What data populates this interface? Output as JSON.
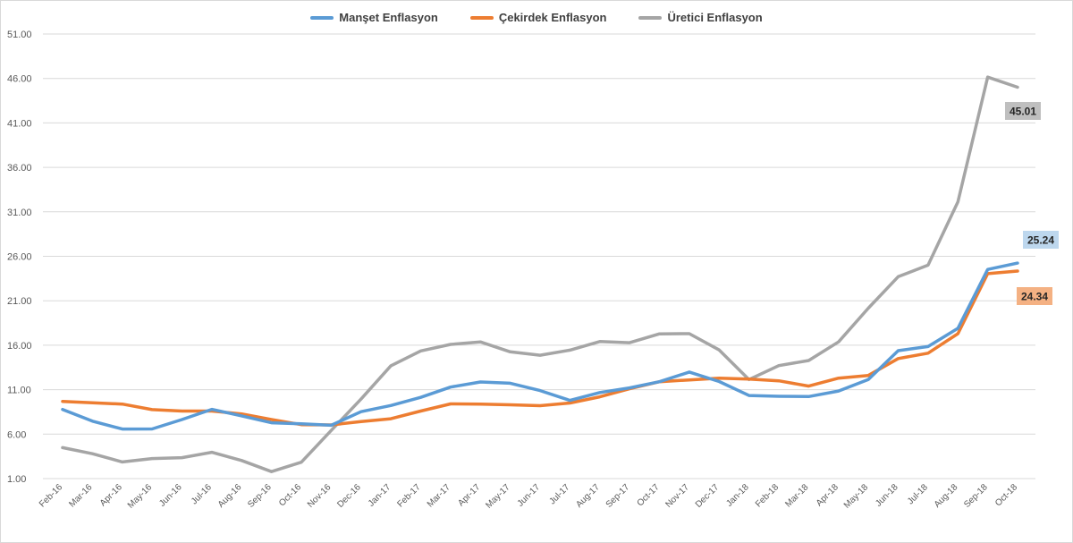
{
  "chart_data": {
    "type": "line",
    "categories": [
      "Feb-16",
      "Mar-16",
      "Apr-16",
      "May-16",
      "Jun-16",
      "Jul-16",
      "Aug-16",
      "Sep-16",
      "Oct-16",
      "Nov-16",
      "Dec-16",
      "Jan-17",
      "Feb-17",
      "Mar-17",
      "Apr-17",
      "May-17",
      "Jun-17",
      "Jul-17",
      "Aug-17",
      "Sep-17",
      "Oct-17",
      "Nov-17",
      "Dec-17",
      "Jan-18",
      "Feb-18",
      "Mar-18",
      "Apr-18",
      "May-18",
      "Jun-18",
      "Jul-18",
      "Aug-18",
      "Sep-18",
      "Oct-18"
    ],
    "series": [
      {
        "name": "Manşet Enflasyon",
        "color": "#5B9BD5",
        "values": [
          8.78,
          7.46,
          6.57,
          6.58,
          7.64,
          8.79,
          8.05,
          7.28,
          7.16,
          7.0,
          8.53,
          9.22,
          10.13,
          11.29,
          11.87,
          11.72,
          10.9,
          9.79,
          10.68,
          11.2,
          11.9,
          12.98,
          11.92,
          10.35,
          10.26,
          10.23,
          10.85,
          12.15,
          15.39,
          15.85,
          17.9,
          24.52,
          25.24
        ]
      },
      {
        "name": "Çekirdek Enflasyon",
        "color": "#ED7D31",
        "values": [
          9.68,
          9.52,
          9.38,
          8.76,
          8.6,
          8.6,
          8.27,
          7.64,
          7.07,
          7.04,
          7.42,
          7.73,
          8.6,
          9.4,
          9.38,
          9.3,
          9.2,
          9.5,
          10.2,
          11.1,
          11.9,
          12.1,
          12.3,
          12.2,
          12.0,
          11.4,
          12.3,
          12.6,
          14.5,
          15.1,
          17.3,
          24.05,
          24.34
        ]
      },
      {
        "name": "Üretici Enflasyon",
        "color": "#A5A5A5",
        "values": [
          4.48,
          3.8,
          2.87,
          3.25,
          3.35,
          3.96,
          3.03,
          1.78,
          2.84,
          6.41,
          9.94,
          13.69,
          15.36,
          16.09,
          16.37,
          15.26,
          14.87,
          15.45,
          16.41,
          16.28,
          17.28,
          17.3,
          15.47,
          12.14,
          13.71,
          14.28,
          16.37,
          20.16,
          23.71,
          25.0,
          32.13,
          46.15,
          45.01
        ]
      }
    ],
    "data_labels": [
      {
        "series": "Üretici Enflasyon",
        "category": "Oct-18",
        "text": "45.01",
        "bg": "#BFBFBF"
      },
      {
        "series": "Manşet Enflasyon",
        "category": "Oct-18",
        "text": "25.24",
        "bg": "#BDD7EE"
      },
      {
        "series": "Çekirdek Enflasyon",
        "category": "Oct-18",
        "text": "24.34",
        "bg": "#F4B183"
      }
    ],
    "y_ticks": [
      "1.00",
      "6.00",
      "11.00",
      "16.00",
      "21.00",
      "26.00",
      "31.00",
      "36.00",
      "41.00",
      "46.00",
      "51.00"
    ],
    "ylim": [
      1,
      51
    ],
    "grid": true,
    "legend_position": "top-center",
    "title": "",
    "xlabel": "",
    "ylabel": ""
  }
}
